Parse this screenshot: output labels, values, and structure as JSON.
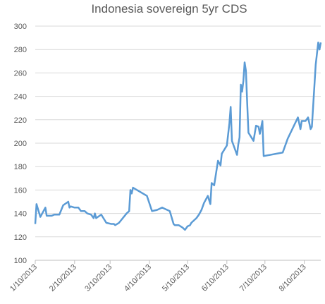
{
  "chart_data": {
    "type": "line",
    "title": "Indonesia sovereign 5yr CDS",
    "x": [
      "2013-01-10",
      "2013-01-11",
      "2013-01-14",
      "2013-01-17",
      "2013-01-18",
      "2013-01-19",
      "2013-01-23",
      "2013-01-25",
      "2013-01-29",
      "2013-02-01",
      "2013-02-05",
      "2013-02-06",
      "2013-02-07",
      "2013-02-10",
      "2013-02-13",
      "2013-02-15",
      "2013-02-18",
      "2013-02-20",
      "2013-02-23",
      "2013-02-25",
      "2013-02-26",
      "2013-02-27",
      "2013-03-03",
      "2013-03-07",
      "2013-03-11",
      "2013-03-13",
      "2013-03-14",
      "2013-03-17",
      "2013-03-23",
      "2013-03-25",
      "2013-03-26",
      "2013-03-27",
      "2013-03-28",
      "2013-04-08",
      "2013-04-12",
      "2013-04-16",
      "2013-04-18",
      "2013-04-20",
      "2013-04-22",
      "2013-04-26",
      "2013-04-29",
      "2013-04-30",
      "2013-05-03",
      "2013-05-06",
      "2013-05-08",
      "2013-05-10",
      "2013-05-12",
      "2013-05-13",
      "2013-05-17",
      "2013-05-19",
      "2013-05-21",
      "2013-05-23",
      "2013-05-26",
      "2013-05-28",
      "2013-05-29",
      "2013-05-31",
      "2013-06-03",
      "2013-06-05",
      "2013-06-06",
      "2013-06-10",
      "2013-06-12",
      "2013-06-13",
      "2013-06-14",
      "2013-06-17",
      "2013-06-18",
      "2013-06-19",
      "2013-06-20",
      "2013-06-21",
      "2013-06-22",
      "2013-06-23",
      "2013-06-24",
      "2013-06-25",
      "2013-06-26",
      "2013-06-27",
      "2013-07-01",
      "2013-07-03",
      "2013-07-05",
      "2013-07-06",
      "2013-07-08",
      "2013-07-09",
      "2013-07-24",
      "2013-07-28",
      "2013-08-05",
      "2013-08-07",
      "2013-08-08",
      "2013-08-11",
      "2013-08-13",
      "2013-08-15",
      "2013-08-16",
      "2013-08-19",
      "2013-08-21",
      "2013-08-22",
      "2013-08-23"
    ],
    "series": [
      {
        "color": "#5b9bd5",
        "values": [
          131,
          148,
          137,
          143,
          145,
          138,
          138,
          139,
          139,
          147,
          150,
          145,
          146,
          145,
          145,
          142,
          142,
          140,
          139,
          136,
          140,
          136,
          139,
          132,
          131,
          131,
          130,
          132,
          140,
          142,
          160,
          157,
          162,
          155,
          142,
          143,
          144,
          145,
          144,
          142,
          131,
          130,
          130,
          128,
          126,
          129,
          130,
          132,
          136,
          139,
          143,
          149,
          155,
          148,
          166,
          164,
          185,
          181,
          191,
          198,
          217,
          231,
          202,
          193,
          190,
          199,
          205,
          250,
          244,
          253,
          269,
          262,
          235,
          209,
          202,
          215,
          214,
          208,
          219,
          189,
          192,
          204,
          222,
          212,
          219,
          219,
          222,
          212,
          214,
          267,
          286,
          280,
          286
        ]
      }
    ],
    "xlim": [
      "2013-01-10",
      "2013-08-23"
    ],
    "xticks": [
      {
        "value": "2013-01-10",
        "label": "1/10/2013"
      },
      {
        "value": "2013-02-10",
        "label": "2/10/2013"
      },
      {
        "value": "2013-03-10",
        "label": "3/10/2013"
      },
      {
        "value": "2013-04-10",
        "label": "4/10/2013"
      },
      {
        "value": "2013-05-10",
        "label": "5/10/2013"
      },
      {
        "value": "2013-06-10",
        "label": "6/10/2013"
      },
      {
        "value": "2013-07-10",
        "label": "7/10/2013"
      },
      {
        "value": "2013-08-10",
        "label": "8/10/2013"
      }
    ],
    "ylim": [
      100,
      300
    ],
    "yticks": [
      100,
      120,
      140,
      160,
      180,
      200,
      220,
      240,
      260,
      280,
      300
    ],
    "grid": true
  }
}
